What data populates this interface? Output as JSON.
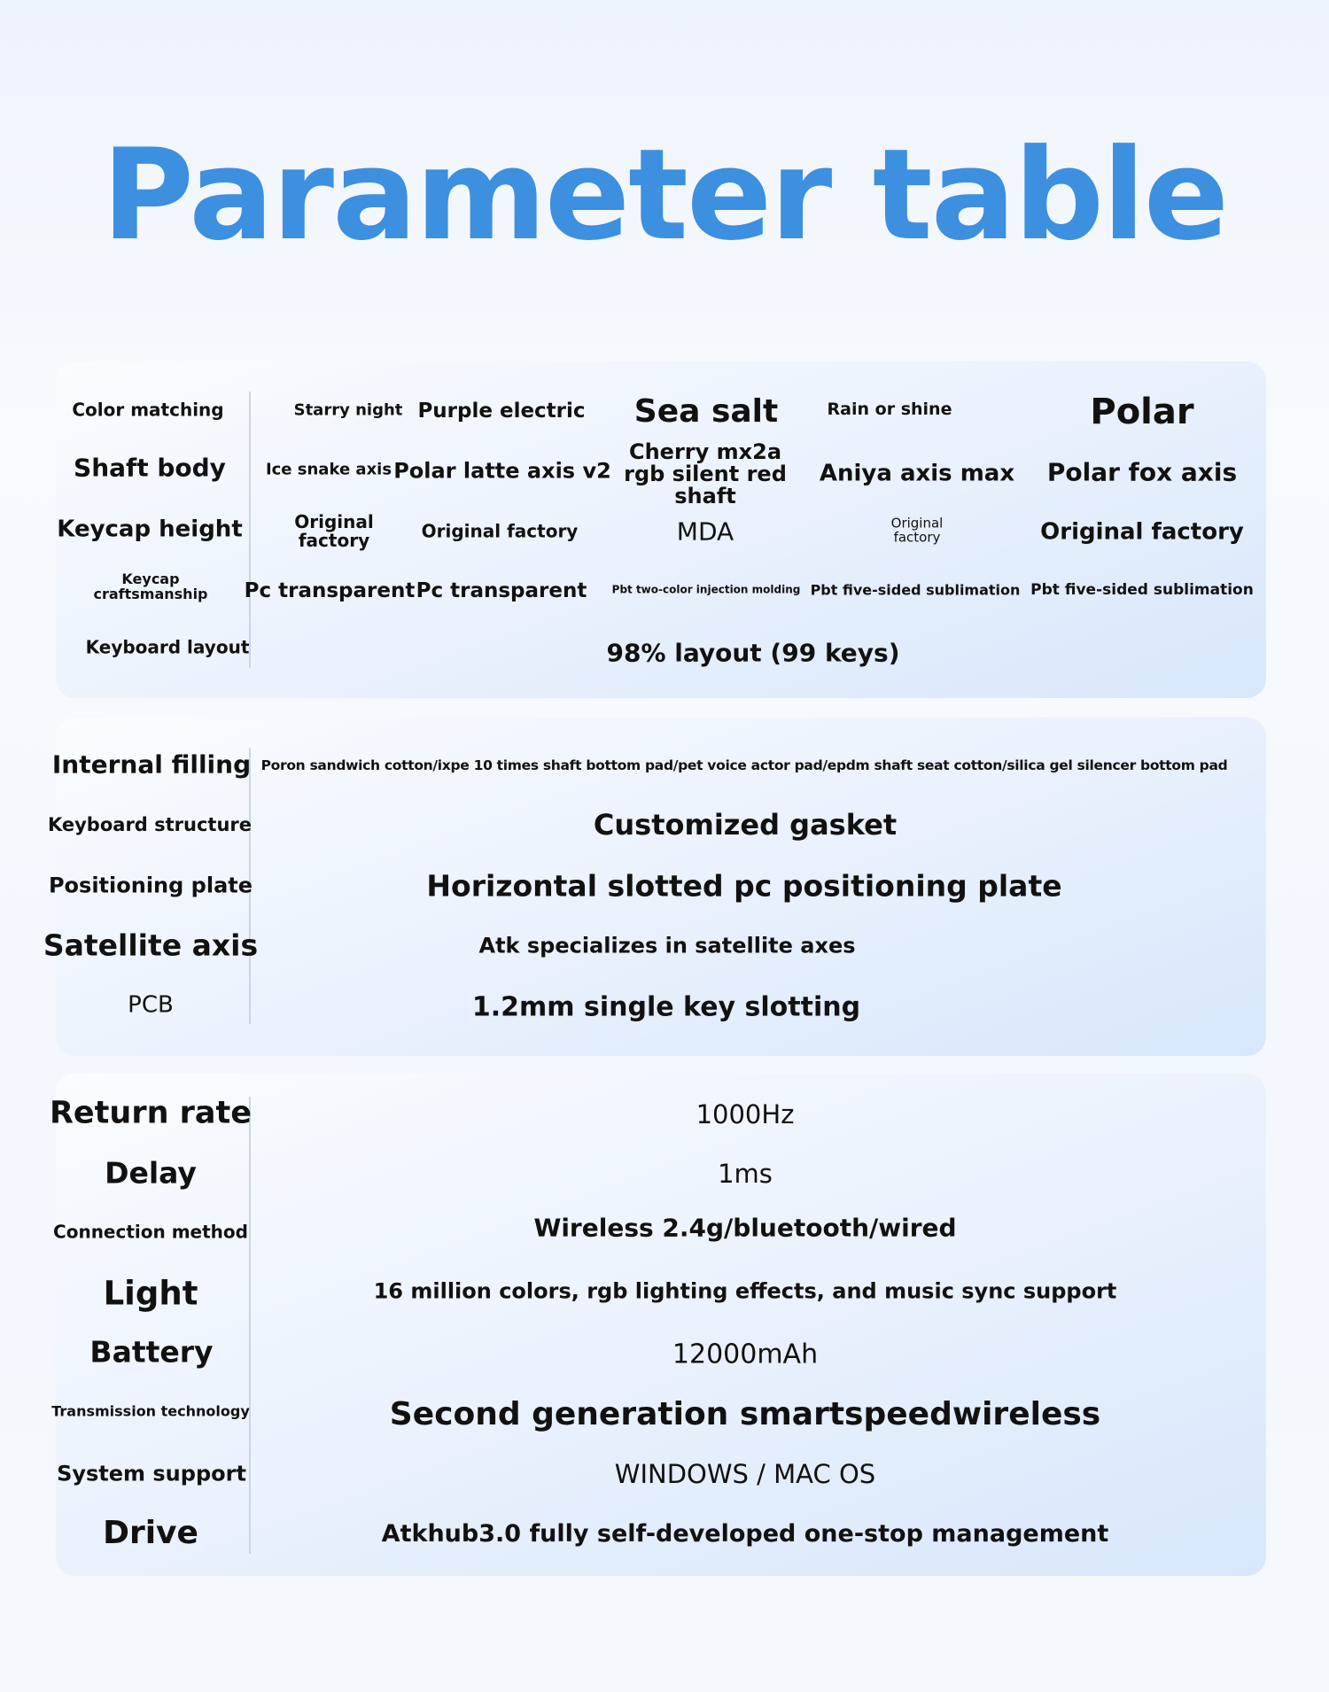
{
  "title": "Parameter table",
  "section1": {
    "labels": [
      "Color matching",
      "Shaft body",
      "Keycap height",
      "Keycap craftsmanship",
      "Keyboard layout"
    ],
    "color_matching": [
      "Starry night",
      "Purple electric",
      "Sea salt",
      "Rain or shine",
      "Polar"
    ],
    "shaft_body": [
      "Ice snake axis",
      "Polar latte axis v2",
      "Cherry mx2a rgb silent red shaft",
      "Aniya axis max",
      "Polar fox axis"
    ],
    "keycap_height": [
      "Original factory",
      "Original factory",
      "MDA",
      "Original factory",
      "Original factory"
    ],
    "keycap_craftsmanship": [
      "Pc transparent",
      "Pc transparent",
      "Pbt two-color injection molding",
      "Pbt five-sided sublimation",
      "Pbt five-sided sublimation"
    ],
    "keyboard_layout": "98% layout (99 keys)"
  },
  "section2": {
    "rows": [
      {
        "label": "Internal filling",
        "value": "Poron sandwich cotton/ixpe 10 times shaft bottom pad/pet voice actor pad/epdm shaft seat cotton/silica gel silencer bottom pad"
      },
      {
        "label": "Keyboard structure",
        "value": "Customized gasket"
      },
      {
        "label": "Positioning plate",
        "value": "Horizontal slotted pc positioning plate"
      },
      {
        "label": "Satellite axis",
        "value": "Atk specializes in satellite axes"
      },
      {
        "label": "PCB",
        "value": "1.2mm single key slotting"
      }
    ]
  },
  "section3": {
    "rows": [
      {
        "label": "Return rate",
        "value": "1000Hz"
      },
      {
        "label": "Delay",
        "value": "1ms"
      },
      {
        "label": "Connection method",
        "value": "Wireless 2.4g/bluetooth/wired"
      },
      {
        "label": "Light",
        "value": "16 million colors, rgb lighting effects, and music sync support"
      },
      {
        "label": "Battery",
        "value": "12000mAh"
      },
      {
        "label": "Transmission technology",
        "value": "Second generation smartspeedwireless"
      },
      {
        "label": "System support",
        "value": "WINDOWS / MAC OS"
      },
      {
        "label": "Drive",
        "value": "Atkhub3.0 fully self-developed one-stop management"
      }
    ]
  },
  "colors": {
    "title": "#3d8fdf"
  }
}
